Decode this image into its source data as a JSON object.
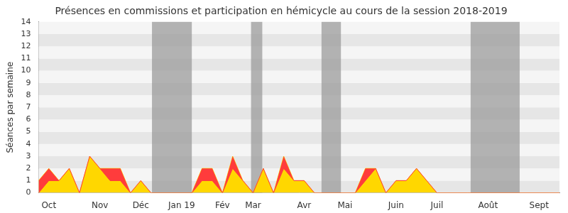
{
  "chart_data": {
    "type": "area",
    "title": "Présences en commissions et participation en hémicycle au cours de la session 2018-2019",
    "y_label": "Séances par semaine",
    "stacked": true,
    "grid": true,
    "categories": [
      null,
      "Oct",
      null,
      null,
      null,
      null,
      "Nov",
      null,
      null,
      null,
      "Déc",
      null,
      null,
      null,
      "Jan 19",
      null,
      null,
      null,
      "Fév",
      null,
      null,
      "Mar",
      null,
      null,
      null,
      null,
      "Avr",
      null,
      null,
      null,
      "Mai",
      null,
      null,
      null,
      null,
      "Juin",
      null,
      null,
      null,
      "Juil",
      null,
      null,
      null,
      null,
      "Août",
      null,
      null,
      null,
      null,
      "Sept",
      null,
      null
    ],
    "series": [
      {
        "color": "#ffd700",
        "values": [
          1,
          1,
          0,
          0,
          0,
          0,
          0,
          1,
          1,
          0,
          0,
          0,
          0,
          0,
          0,
          0,
          1,
          1,
          0,
          1,
          0,
          0,
          0,
          0,
          1,
          0,
          0,
          0,
          0,
          0,
          0,
          0,
          1,
          0,
          0,
          0,
          0,
          0,
          0,
          0,
          0,
          0,
          0,
          0,
          0,
          0,
          0,
          0,
          0,
          0,
          0,
          0
        ]
      },
      {
        "color": "#ff3c3c",
        "values": [
          0,
          1,
          1,
          2,
          0,
          3,
          2,
          1,
          1,
          0,
          1,
          0,
          0,
          0,
          0,
          0,
          1,
          1,
          0,
          2,
          1,
          0,
          2,
          0,
          2,
          1,
          1,
          0,
          0,
          0,
          0,
          0,
          1,
          2,
          0,
          1,
          1,
          2,
          1,
          0,
          0,
          0,
          0,
          0,
          0,
          0,
          0,
          0,
          0,
          0,
          0,
          0
        ]
      }
    ],
    "shaded_periods": [
      [
        11.1,
        15.0
      ],
      [
        20.8,
        21.9
      ],
      [
        27.7,
        29.6
      ],
      [
        42.3,
        47.1
      ]
    ],
    "ylim": [
      0,
      14
    ],
    "yticks": [
      0,
      1,
      2,
      3,
      4,
      5,
      6,
      7,
      8,
      9,
      10,
      11,
      12,
      13,
      14
    ]
  }
}
